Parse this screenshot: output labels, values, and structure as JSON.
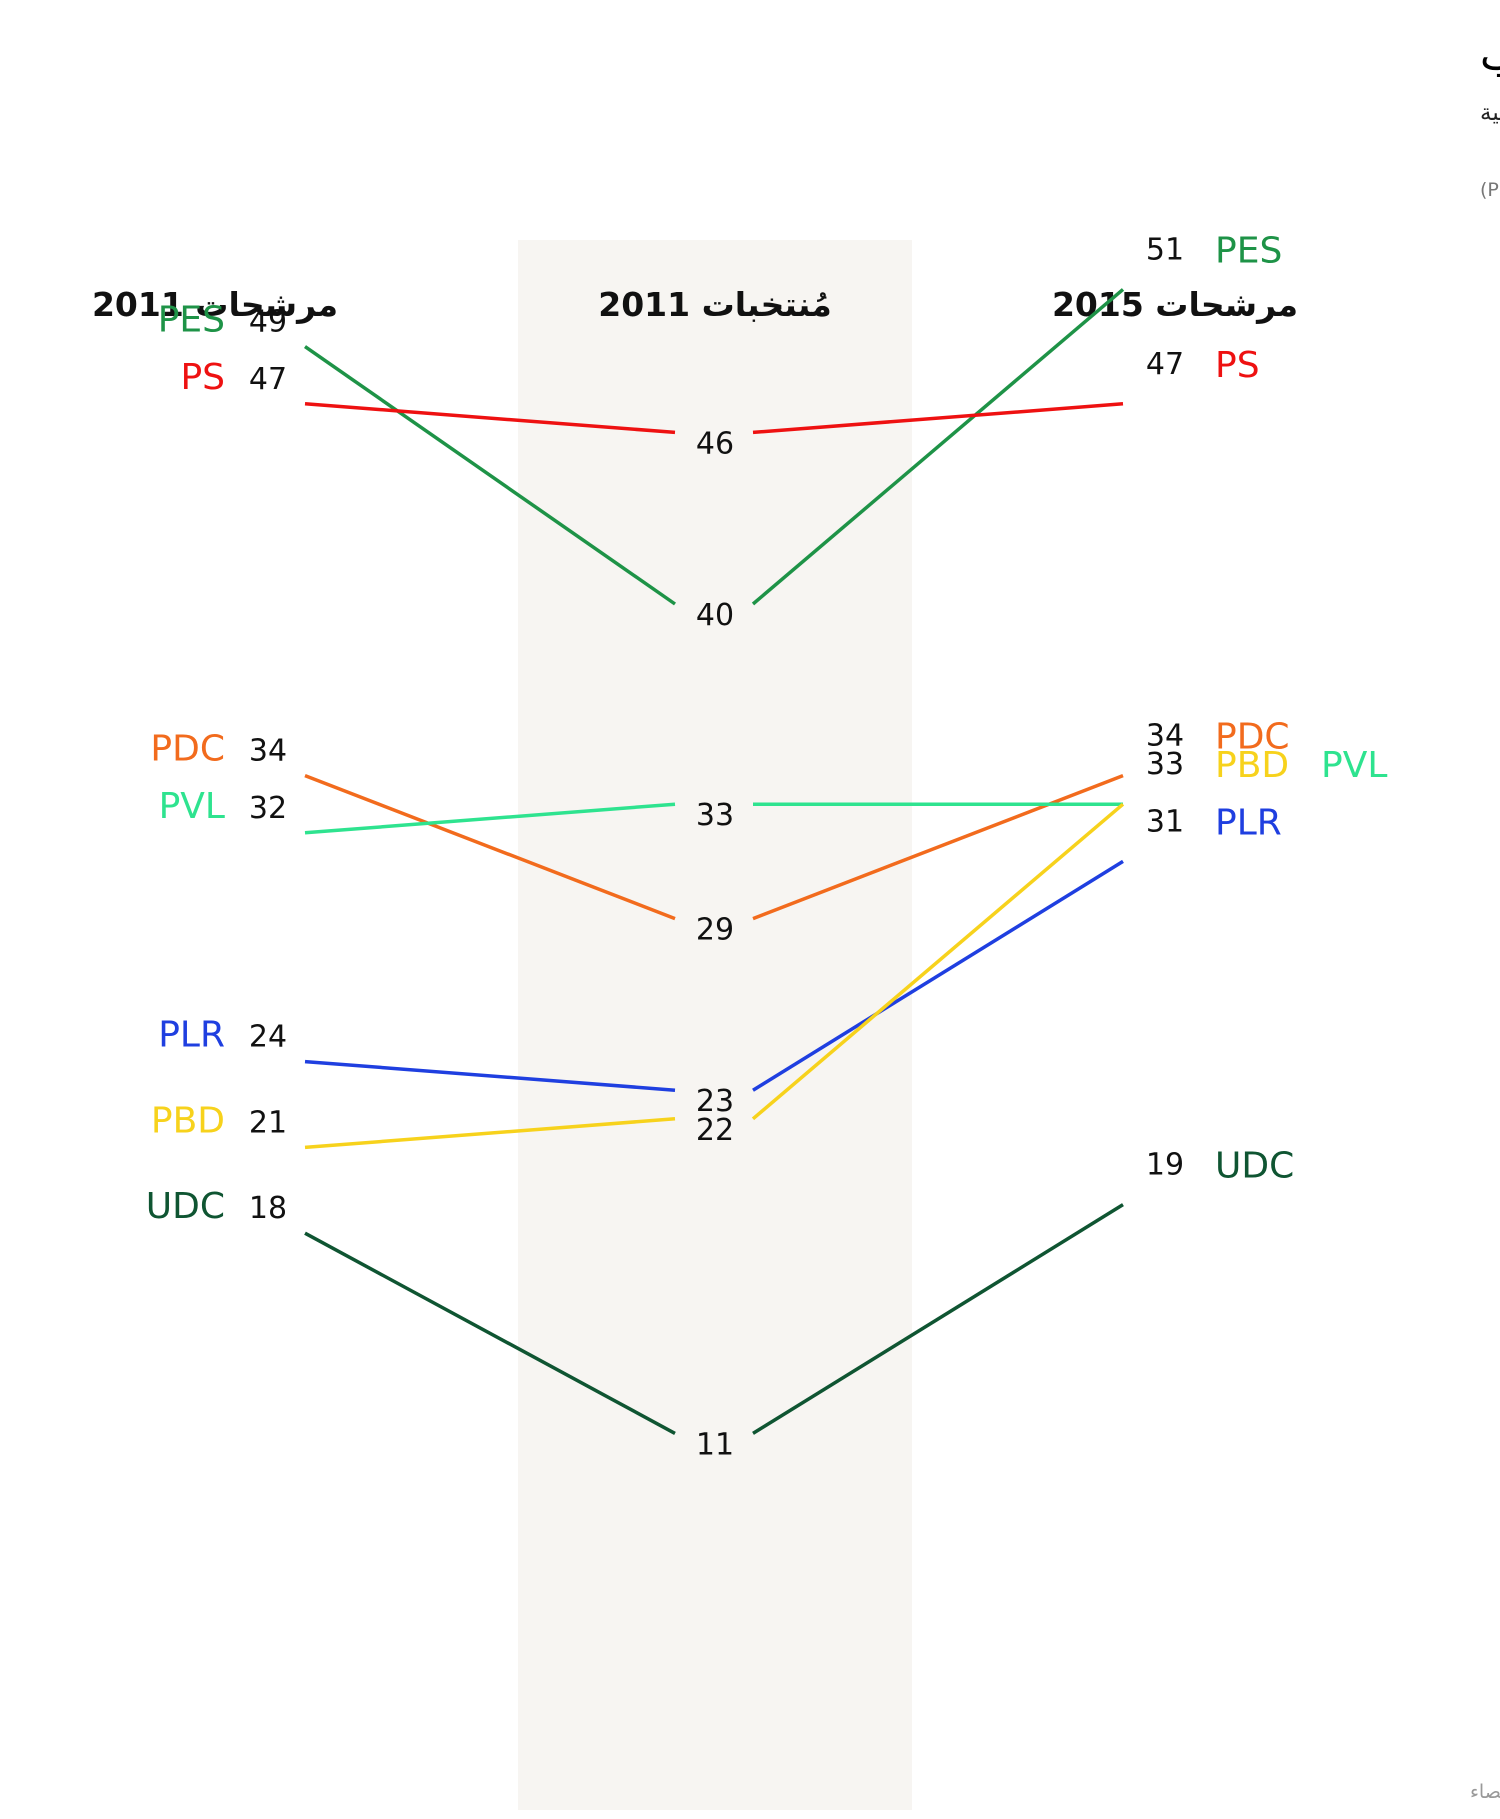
{
  "title": "مجلس النواب السويسري (الغرفة السفلى): النسبة المائوية للنساء حسب الأحزاب",
  "subtitle": "نسبة المرشحات والمنتخبات في مجلس النواب عن الأحزاب السياسية السبع الرئيسية",
  "note": "(الخضر PEV، الإشتراكي PS، الديمقراطي المسيحي PDC، الليبرالي الراديكالي PLR، الخضر الليبراليون  PVL، حزب الشعب UDC، البورجوازي الديمقراطي PBD)",
  "source": "المصدر: المكتب الفدرالي للإحصاء",
  "chart_data": {
    "type": "slope",
    "columns": [
      "مرشحات 2011",
      "مُنتخبات 2011",
      "مرشحات 2015"
    ],
    "series": [
      {
        "name": "PES",
        "color": "#1e9347",
        "values": [
          49,
          40,
          51
        ]
      },
      {
        "name": "PS",
        "color": "#ee1111",
        "values": [
          47,
          46,
          47
        ]
      },
      {
        "name": "PDC",
        "color": "#f26b1d",
        "values": [
          34,
          29,
          34
        ]
      },
      {
        "name": "PVL",
        "color": "#2ee38f",
        "values": [
          32,
          33,
          33
        ]
      },
      {
        "name": "PLR",
        "color": "#1f3fe0",
        "values": [
          24,
          23,
          31
        ]
      },
      {
        "name": "PBD",
        "color": "#f7d21c",
        "values": [
          21,
          22,
          33
        ]
      },
      {
        "name": "UDC",
        "color": "#0f5532",
        "values": [
          18,
          11,
          19
        ]
      }
    ],
    "right_labels": [
      {
        "value": "51",
        "parties": [
          "PES"
        ]
      },
      {
        "value": "47",
        "parties": [
          "PS"
        ]
      },
      {
        "value": "34",
        "parties": [
          "PDC"
        ]
      },
      {
        "value": "33",
        "parties": [
          "PBD",
          "PVL"
        ]
      },
      {
        "value": "31",
        "parties": [
          "PLR"
        ]
      },
      {
        "value": "19",
        "parties": [
          "UDC"
        ]
      }
    ]
  }
}
